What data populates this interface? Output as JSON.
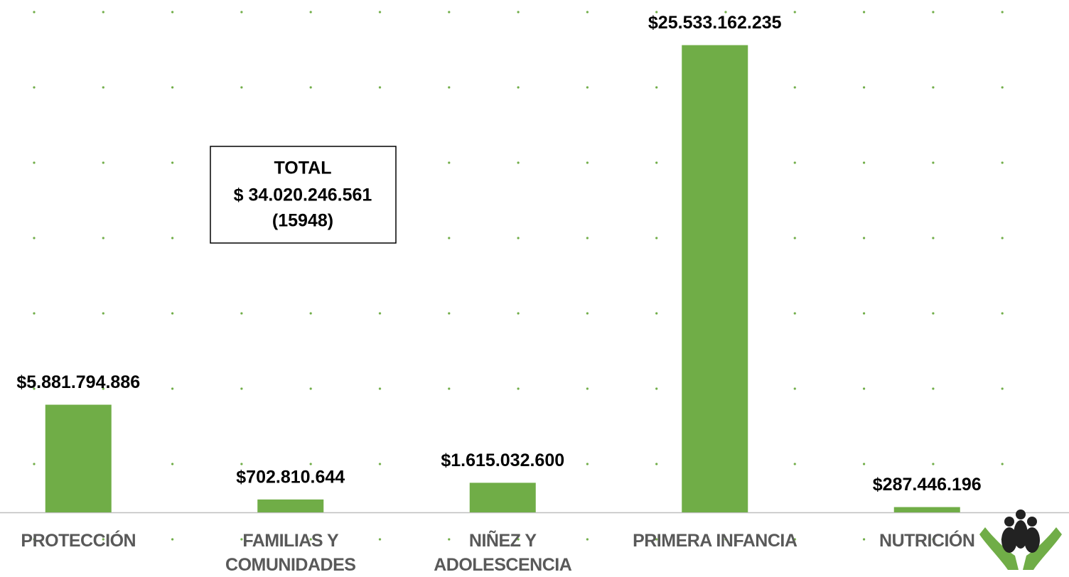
{
  "chart_data": {
    "type": "bar",
    "categories": [
      "PROTECCIÓN",
      "FAMILIAS Y\nCOMUNIDADES",
      "NIÑEZ Y\nADOLESCENCIA",
      "PRIMERA INFANCIA",
      "NUTRICIÓN"
    ],
    "values": [
      5881794886,
      702810644,
      1615032600,
      25533162235,
      287446196
    ],
    "value_labels": [
      "$5.881.794.886",
      "$702.810.644",
      "$1.615.032.600",
      "$25.533.162.235",
      "$287.446.196"
    ],
    "color": "#70ad47",
    "ylim": [
      0,
      28000000000
    ],
    "annotation": [
      "TOTAL",
      "$ 34.020.246.561",
      "(15948)"
    ]
  }
}
